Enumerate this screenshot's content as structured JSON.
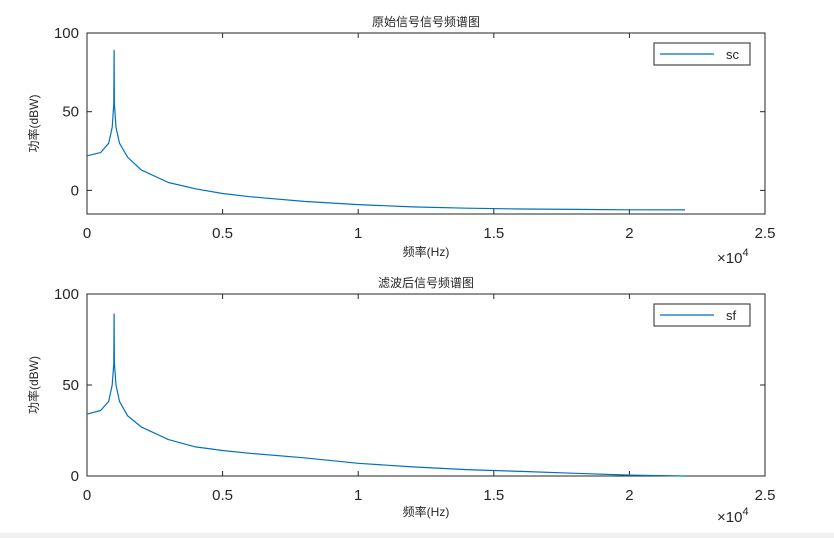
{
  "chart_data": [
    {
      "type": "line",
      "title": "原始信号信号频谱图",
      "xlabel": "频率(Hz)",
      "ylabel": "功率(dBW)",
      "xlim": [
        0,
        25000
      ],
      "ylim": [
        -15,
        100
      ],
      "x_scale_label": "×10",
      "x_scale_exponent": "4",
      "xticks": [
        0,
        5000,
        10000,
        15000,
        20000,
        25000
      ],
      "xtick_labels": [
        "0",
        "0.5",
        "1",
        "1.5",
        "2",
        "2.5"
      ],
      "yticks": [
        0,
        50,
        100
      ],
      "ytick_labels": [
        "0",
        "50",
        "100"
      ],
      "legend_position": "top-right",
      "series": [
        {
          "name": "sc",
          "color": "#0072BD",
          "x": [
            0,
            500,
            800,
            930,
            990,
            1000,
            1010,
            1070,
            1200,
            1500,
            2000,
            3000,
            4000,
            5000,
            6000,
            8000,
            10000,
            12000,
            14000,
            16000,
            18000,
            20000,
            22050
          ],
          "y": [
            22,
            24,
            30,
            40,
            55,
            89,
            55,
            40,
            30,
            21,
            13,
            5,
            1,
            -2,
            -4,
            -7,
            -9,
            -10.5,
            -11.3,
            -11.8,
            -12.1,
            -12.3,
            -12.4
          ]
        }
      ]
    },
    {
      "type": "line",
      "title": "滤波后信号频谱图",
      "xlabel": "频率(Hz)",
      "ylabel": "功率(dBW)",
      "xlim": [
        0,
        25000
      ],
      "ylim": [
        0,
        100
      ],
      "x_scale_label": "×10",
      "x_scale_exponent": "4",
      "xticks": [
        0,
        5000,
        10000,
        15000,
        20000,
        25000
      ],
      "xtick_labels": [
        "0",
        "0.5",
        "1",
        "1.5",
        "2",
        "2.5"
      ],
      "yticks": [
        0,
        50,
        100
      ],
      "ytick_labels": [
        "0",
        "50",
        "100"
      ],
      "legend_position": "top-right",
      "series": [
        {
          "name": "sf",
          "color": "#0072BD",
          "x": [
            0,
            500,
            800,
            930,
            990,
            1000,
            1010,
            1070,
            1200,
            1500,
            2000,
            3000,
            4000,
            5000,
            6000,
            8000,
            10000,
            12000,
            14000,
            16000,
            18000,
            20000,
            22050
          ],
          "y": [
            34,
            36,
            41,
            50,
            62,
            89,
            62,
            50,
            41,
            33,
            27,
            20,
            16,
            14,
            12.5,
            10,
            7,
            5,
            3.5,
            2.5,
            1.5,
            0.5,
            0
          ]
        }
      ]
    }
  ]
}
